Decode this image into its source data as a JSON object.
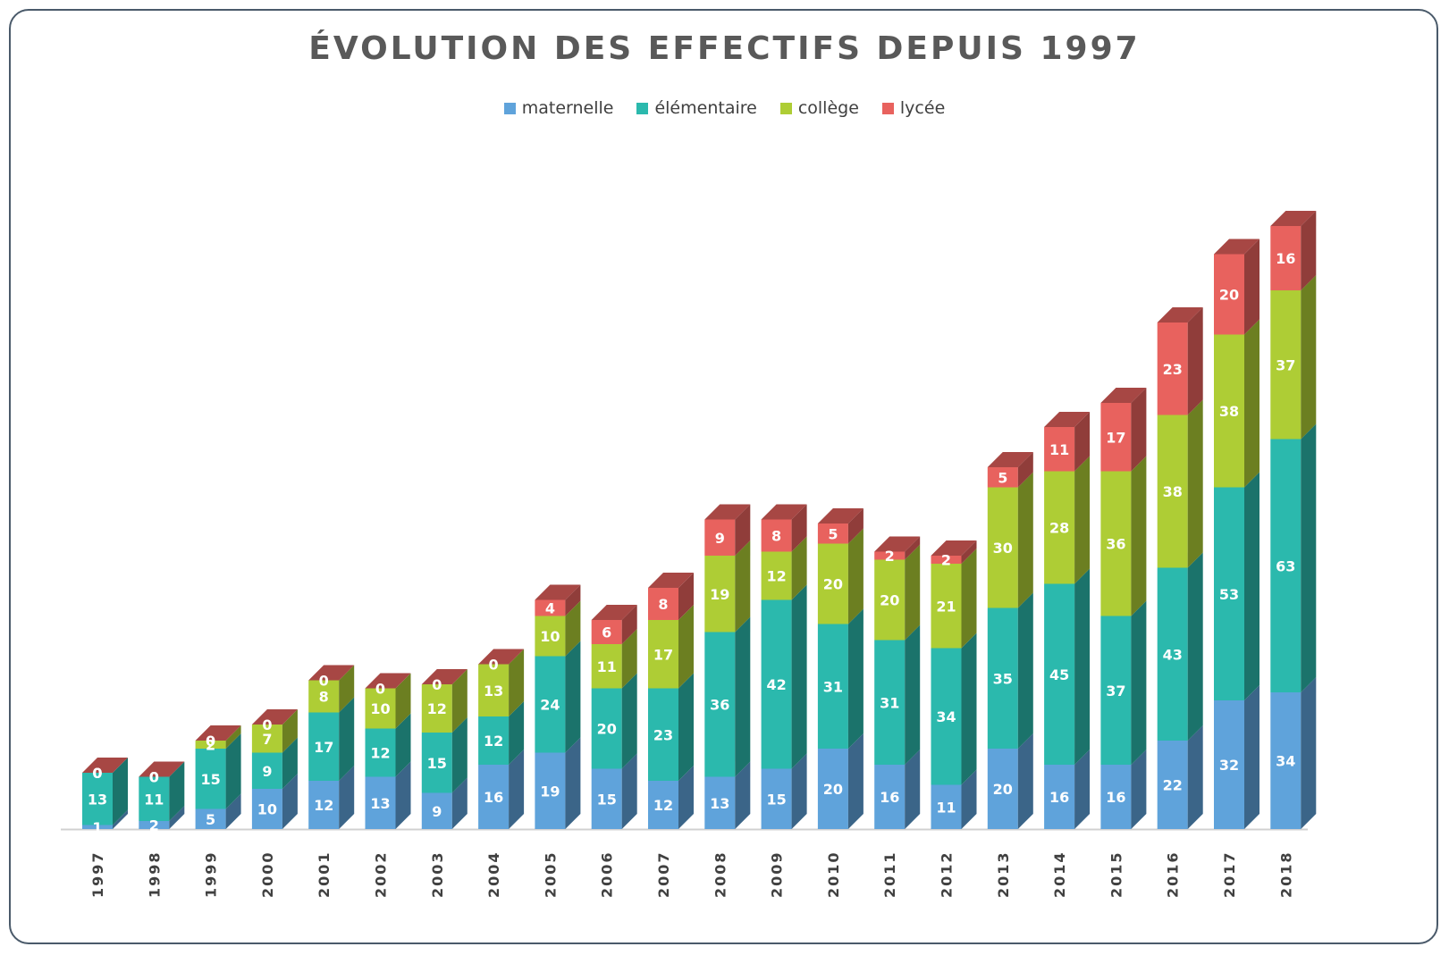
{
  "chart_data": {
    "type": "bar",
    "stacked": true,
    "three_d": true,
    "title": "ÉVOLUTION DES EFFECTIFS DEPUIS 1997",
    "legend_position": "top",
    "grid": false,
    "ylim": [
      0,
      155
    ],
    "categories": [
      "1997",
      "1998",
      "1999",
      "2000",
      "2001",
      "2002",
      "2003",
      "2004",
      "2005",
      "2006",
      "2007",
      "2008",
      "2009",
      "2010",
      "2011",
      "2012",
      "2013",
      "2014",
      "2015",
      "2016",
      "2017",
      "2018"
    ],
    "series": [
      {
        "name": "maternelle",
        "color": "#5fa3db",
        "values": [
          1,
          2,
          5,
          10,
          12,
          13,
          9,
          16,
          19,
          15,
          12,
          13,
          15,
          20,
          16,
          11,
          20,
          16,
          16,
          22,
          32,
          34
        ]
      },
      {
        "name": "élémentaire",
        "color": "#2bb9ad",
        "values": [
          13,
          11,
          15,
          9,
          17,
          12,
          15,
          12,
          24,
          20,
          23,
          36,
          42,
          31,
          31,
          34,
          35,
          45,
          37,
          43,
          53,
          63
        ]
      },
      {
        "name": "collège",
        "color": "#aecd35",
        "values": [
          0,
          0,
          2,
          7,
          8,
          10,
          12,
          13,
          10,
          11,
          17,
          19,
          12,
          20,
          20,
          21,
          30,
          28,
          36,
          38,
          38,
          37
        ]
      },
      {
        "name": "lycée",
        "color": "#e8625e",
        "values": [
          0,
          0,
          0,
          0,
          0,
          0,
          0,
          0,
          4,
          6,
          8,
          9,
          8,
          5,
          2,
          2,
          5,
          11,
          17,
          23,
          20,
          16
        ]
      }
    ]
  }
}
